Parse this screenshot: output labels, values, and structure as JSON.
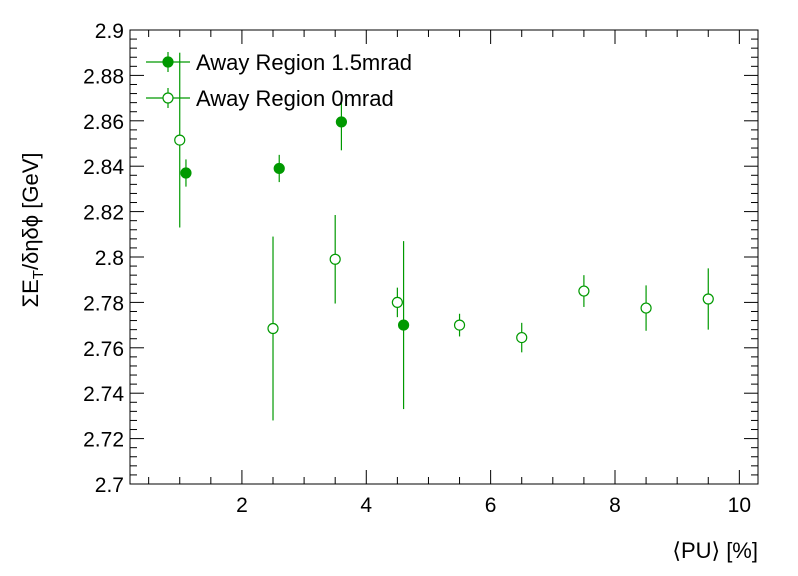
{
  "chart_data": {
    "type": "scatter",
    "xlabel": "⟨PU⟩ [%]",
    "ylabel_parts": {
      "main": "ΣE",
      "sub": "T",
      "rest": "/δηδϕ [GeV]"
    },
    "xlim": [
      0.2,
      10.3
    ],
    "ylim": [
      2.7,
      2.9
    ],
    "x_ticks": [
      2,
      4,
      6,
      8,
      10
    ],
    "y_ticks": [
      2.7,
      2.72,
      2.74,
      2.76,
      2.78,
      2.8,
      2.82,
      2.84,
      2.86,
      2.88,
      2.9
    ],
    "y_tick_labels": [
      "2.7",
      "2.72",
      "2.74",
      "2.76",
      "2.78",
      "2.8",
      "2.82",
      "2.84",
      "2.86",
      "2.88",
      "2.9"
    ],
    "grid": false,
    "legend_position": "top-left",
    "color": "#009900",
    "series": [
      {
        "name": "Away Region 1.5mrad",
        "marker": "filled-circle",
        "points": [
          {
            "x": 1.1,
            "y": 2.837,
            "err": 0.006
          },
          {
            "x": 2.6,
            "y": 2.839,
            "err": 0.006
          },
          {
            "x": 3.6,
            "y": 2.8595,
            "err": 0.0125
          },
          {
            "x": 4.6,
            "y": 2.77,
            "err": 0.037
          }
        ]
      },
      {
        "name": "Away Region 0mrad",
        "marker": "open-circle",
        "points": [
          {
            "x": 1.0,
            "y": 2.8515,
            "err": 0.0385
          },
          {
            "x": 2.5,
            "y": 2.7685,
            "err": 0.0405
          },
          {
            "x": 3.5,
            "y": 2.799,
            "err": 0.0195
          },
          {
            "x": 4.5,
            "y": 2.78,
            "err": 0.0065
          },
          {
            "x": 5.5,
            "y": 2.77,
            "err": 0.005
          },
          {
            "x": 6.5,
            "y": 2.7645,
            "err": 0.0065
          },
          {
            "x": 7.5,
            "y": 2.785,
            "err": 0.007
          },
          {
            "x": 8.5,
            "y": 2.7775,
            "err": 0.01
          },
          {
            "x": 9.5,
            "y": 2.7815,
            "err": 0.0135
          }
        ]
      }
    ]
  }
}
